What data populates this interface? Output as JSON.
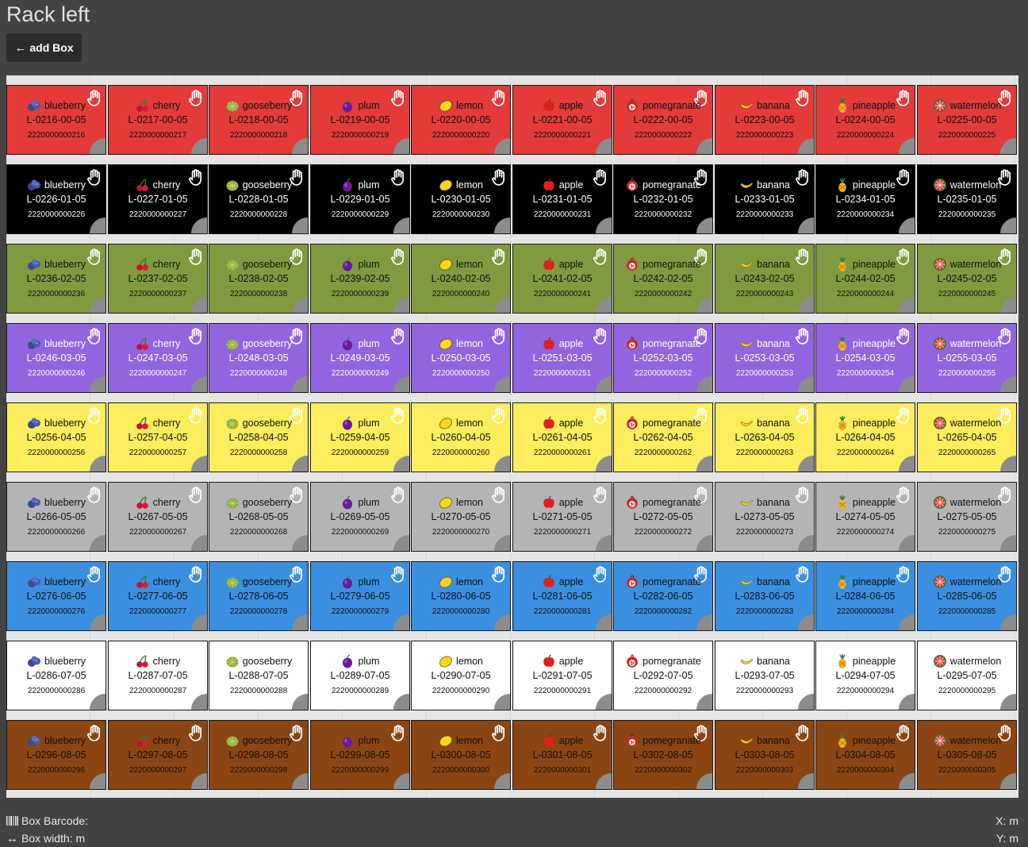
{
  "page": {
    "title": "Rack left"
  },
  "toolbar": {
    "add_box_label": "add Box",
    "add_box_icon": "arrow-left-icon"
  },
  "colors": {
    "red": "#e33a3a",
    "black": "#000000",
    "olive": "#7f9a3f",
    "purple": "#9165e0",
    "yellow": "#fbed5b",
    "gray": "#b4b4b4",
    "blue": "#3a8fe0",
    "white": "#ffffff",
    "brown": "#8b4513",
    "rack_bg": "#e5e5e5",
    "page_bg": "#434343"
  },
  "rows": [
    {
      "color": "#e33a3a",
      "text_color": "#111111",
      "hand_color": "#ffffff",
      "boxes": [
        {
          "fruit": "blueberry",
          "icon": "blueberry-icon",
          "label": "L-0216-00-05",
          "barcode": "2220000000216"
        },
        {
          "fruit": "cherry",
          "icon": "cherry-icon",
          "label": "L-0217-00-05",
          "barcode": "2220000000217"
        },
        {
          "fruit": "gooseberry",
          "icon": "gooseberry-icon",
          "label": "L-0218-00-05",
          "barcode": "2220000000218"
        },
        {
          "fruit": "plum",
          "icon": "plum-icon",
          "label": "L-0219-00-05",
          "barcode": "2220000000219"
        },
        {
          "fruit": "lemon",
          "icon": "lemon-icon",
          "label": "L-0220-00-05",
          "barcode": "2220000000220"
        },
        {
          "fruit": "apple",
          "icon": "apple-icon",
          "label": "L-0221-00-05",
          "barcode": "2220000000221"
        },
        {
          "fruit": "pomegranate",
          "icon": "pomegranate-icon",
          "label": "L-0222-00-05",
          "barcode": "2220000000222"
        },
        {
          "fruit": "banana",
          "icon": "banana-icon",
          "label": "L-0223-00-05",
          "barcode": "2220000000223"
        },
        {
          "fruit": "pineapple",
          "icon": "pineapple-icon",
          "label": "L-0224-00-05",
          "barcode": "2220000000224"
        },
        {
          "fruit": "watermelon",
          "icon": "watermelon-icon",
          "label": "L-0225-00-05",
          "barcode": "2220000000225"
        }
      ]
    },
    {
      "color": "#000000",
      "text_color": "#ffffff",
      "hand_color": "#ffffff",
      "boxes": [
        {
          "fruit": "blueberry",
          "icon": "blueberry-icon",
          "label": "L-0226-01-05",
          "barcode": "2220000000226"
        },
        {
          "fruit": "cherry",
          "icon": "cherry-icon",
          "label": "L-0227-01-05",
          "barcode": "2220000000227"
        },
        {
          "fruit": "gooseberry",
          "icon": "gooseberry-icon",
          "label": "L-0228-01-05",
          "barcode": "2220000000228"
        },
        {
          "fruit": "plum",
          "icon": "plum-icon",
          "label": "L-0229-01-05",
          "barcode": "2220000000229"
        },
        {
          "fruit": "lemon",
          "icon": "lemon-icon",
          "label": "L-0230-01-05",
          "barcode": "2220000000230"
        },
        {
          "fruit": "apple",
          "icon": "apple-icon",
          "label": "L-0231-01-05",
          "barcode": "2220000000231"
        },
        {
          "fruit": "pomegranate",
          "icon": "pomegranate-icon",
          "label": "L-0232-01-05",
          "barcode": "2220000000232"
        },
        {
          "fruit": "banana",
          "icon": "banana-icon",
          "label": "L-0233-01-05",
          "barcode": "2220000000233"
        },
        {
          "fruit": "pineapple",
          "icon": "pineapple-icon",
          "label": "L-0234-01-05",
          "barcode": "2220000000234"
        },
        {
          "fruit": "watermelon",
          "icon": "watermelon-icon",
          "label": "L-0235-01-05",
          "barcode": "2220000000235"
        }
      ]
    },
    {
      "color": "#7f9a3f",
      "text_color": "#111111",
      "hand_color": "#ffffff",
      "boxes": [
        {
          "fruit": "blueberry",
          "icon": "blueberry-icon",
          "label": "L-0236-02-05",
          "barcode": "2220000000236"
        },
        {
          "fruit": "cherry",
          "icon": "cherry-icon",
          "label": "L-0237-02-05",
          "barcode": "2220000000237"
        },
        {
          "fruit": "gooseberry",
          "icon": "gooseberry-icon",
          "label": "L-0238-02-05",
          "barcode": "2220000000238"
        },
        {
          "fruit": "plum",
          "icon": "plum-icon",
          "label": "L-0239-02-05",
          "barcode": "2220000000239"
        },
        {
          "fruit": "lemon",
          "icon": "lemon-icon",
          "label": "L-0240-02-05",
          "barcode": "2220000000240"
        },
        {
          "fruit": "apple",
          "icon": "apple-icon",
          "label": "L-0241-02-05",
          "barcode": "2220000000241"
        },
        {
          "fruit": "pomegranate",
          "icon": "pomegranate-icon",
          "label": "L-0242-02-05",
          "barcode": "2220000000242"
        },
        {
          "fruit": "banana",
          "icon": "banana-icon",
          "label": "L-0243-02-05",
          "barcode": "2220000000243"
        },
        {
          "fruit": "pineapple",
          "icon": "pineapple-icon",
          "label": "L-0244-02-05",
          "barcode": "2220000000244"
        },
        {
          "fruit": "watermelon",
          "icon": "watermelon-icon",
          "label": "L-0245-02-05",
          "barcode": "2220000000245"
        }
      ]
    },
    {
      "color": "#9165e0",
      "text_color": "#ffffff",
      "hand_color": "#ffffff",
      "boxes": [
        {
          "fruit": "blueberry",
          "icon": "blueberry-icon",
          "label": "L-0246-03-05",
          "barcode": "2220000000246"
        },
        {
          "fruit": "cherry",
          "icon": "cherry-icon",
          "label": "L-0247-03-05",
          "barcode": "2220000000247"
        },
        {
          "fruit": "gooseberry",
          "icon": "gooseberry-icon",
          "label": "L-0248-03-05",
          "barcode": "2220000000248"
        },
        {
          "fruit": "plum",
          "icon": "plum-icon",
          "label": "L-0249-03-05",
          "barcode": "2220000000249"
        },
        {
          "fruit": "lemon",
          "icon": "lemon-icon",
          "label": "L-0250-03-05",
          "barcode": "2220000000250"
        },
        {
          "fruit": "apple",
          "icon": "apple-icon",
          "label": "L-0251-03-05",
          "barcode": "2220000000251"
        },
        {
          "fruit": "pomegranate",
          "icon": "pomegranate-icon",
          "label": "L-0252-03-05",
          "barcode": "2220000000252"
        },
        {
          "fruit": "banana",
          "icon": "banana-icon",
          "label": "L-0253-03-05",
          "barcode": "2220000000253"
        },
        {
          "fruit": "pineapple",
          "icon": "pineapple-icon",
          "label": "L-0254-03-05",
          "barcode": "2220000000254"
        },
        {
          "fruit": "watermelon",
          "icon": "watermelon-icon",
          "label": "L-0255-03-05",
          "barcode": "2220000000255"
        }
      ]
    },
    {
      "color": "#fbed5b",
      "text_color": "#111111",
      "hand_color": "#ffffff",
      "boxes": [
        {
          "fruit": "blueberry",
          "icon": "blueberry-icon",
          "label": "L-0256-04-05",
          "barcode": "2220000000256"
        },
        {
          "fruit": "cherry",
          "icon": "cherry-icon",
          "label": "L-0257-04-05",
          "barcode": "2220000000257"
        },
        {
          "fruit": "gooseberry",
          "icon": "gooseberry-icon",
          "label": "L-0258-04-05",
          "barcode": "2220000000258"
        },
        {
          "fruit": "plum",
          "icon": "plum-icon",
          "label": "L-0259-04-05",
          "barcode": "2220000000259"
        },
        {
          "fruit": "lemon",
          "icon": "lemon-icon",
          "label": "L-0260-04-05",
          "barcode": "2220000000260"
        },
        {
          "fruit": "apple",
          "icon": "apple-icon",
          "label": "L-0261-04-05",
          "barcode": "2220000000261"
        },
        {
          "fruit": "pomegranate",
          "icon": "pomegranate-icon",
          "label": "L-0262-04-05",
          "barcode": "2220000000262"
        },
        {
          "fruit": "banana",
          "icon": "banana-icon",
          "label": "L-0263-04-05",
          "barcode": "2220000000263"
        },
        {
          "fruit": "pineapple",
          "icon": "pineapple-icon",
          "label": "L-0264-04-05",
          "barcode": "2220000000264"
        },
        {
          "fruit": "watermelon",
          "icon": "watermelon-icon",
          "label": "L-0265-04-05",
          "barcode": "2220000000265"
        }
      ]
    },
    {
      "color": "#b4b4b4",
      "text_color": "#111111",
      "hand_color": "#ffffff",
      "boxes": [
        {
          "fruit": "blueberry",
          "icon": "blueberry-icon",
          "label": "L-0266-05-05",
          "barcode": "2220000000266"
        },
        {
          "fruit": "cherry",
          "icon": "cherry-icon",
          "label": "L-0267-05-05",
          "barcode": "2220000000267"
        },
        {
          "fruit": "gooseberry",
          "icon": "gooseberry-icon",
          "label": "L-0268-05-05",
          "barcode": "2220000000268"
        },
        {
          "fruit": "plum",
          "icon": "plum-icon",
          "label": "L-0269-05-05",
          "barcode": "2220000000269"
        },
        {
          "fruit": "lemon",
          "icon": "lemon-icon",
          "label": "L-0270-05-05",
          "barcode": "2220000000270"
        },
        {
          "fruit": "apple",
          "icon": "apple-icon",
          "label": "L-0271-05-05",
          "barcode": "2220000000271"
        },
        {
          "fruit": "pomegranate",
          "icon": "pomegranate-icon",
          "label": "L-0272-05-05",
          "barcode": "2220000000272"
        },
        {
          "fruit": "banana",
          "icon": "banana-icon",
          "label": "L-0273-05-05",
          "barcode": "2220000000273"
        },
        {
          "fruit": "pineapple",
          "icon": "pineapple-icon",
          "label": "L-0274-05-05",
          "barcode": "2220000000274"
        },
        {
          "fruit": "watermelon",
          "icon": "watermelon-icon",
          "label": "L-0275-05-05",
          "barcode": "2220000000275"
        }
      ]
    },
    {
      "color": "#3a8fe0",
      "text_color": "#111111",
      "hand_color": "#ffffff",
      "boxes": [
        {
          "fruit": "blueberry",
          "icon": "blueberry-icon",
          "label": "L-0276-06-05",
          "barcode": "2220000000276"
        },
        {
          "fruit": "cherry",
          "icon": "cherry-icon",
          "label": "L-0277-06-05",
          "barcode": "2220000000277"
        },
        {
          "fruit": "gooseberry",
          "icon": "gooseberry-icon",
          "label": "L-0278-06-05",
          "barcode": "2220000000278"
        },
        {
          "fruit": "plum",
          "icon": "plum-icon",
          "label": "L-0279-06-05",
          "barcode": "2220000000279"
        },
        {
          "fruit": "lemon",
          "icon": "lemon-icon",
          "label": "L-0280-06-05",
          "barcode": "2220000000280"
        },
        {
          "fruit": "apple",
          "icon": "apple-icon",
          "label": "L-0281-06-05",
          "barcode": "2220000000281"
        },
        {
          "fruit": "pomegranate",
          "icon": "pomegranate-icon",
          "label": "L-0282-06-05",
          "barcode": "2220000000282"
        },
        {
          "fruit": "banana",
          "icon": "banana-icon",
          "label": "L-0283-06-05",
          "barcode": "2220000000283"
        },
        {
          "fruit": "pineapple",
          "icon": "pineapple-icon",
          "label": "L-0284-06-05",
          "barcode": "2220000000284"
        },
        {
          "fruit": "watermelon",
          "icon": "watermelon-icon",
          "label": "L-0285-06-05",
          "barcode": "2220000000285"
        }
      ]
    },
    {
      "color": "#ffffff",
      "text_color": "#111111",
      "hand_color": "#ffffff",
      "boxes": [
        {
          "fruit": "blueberry",
          "icon": "blueberry-icon",
          "label": "L-0286-07-05",
          "barcode": "2220000000286"
        },
        {
          "fruit": "cherry",
          "icon": "cherry-icon",
          "label": "L-0287-07-05",
          "barcode": "2220000000287"
        },
        {
          "fruit": "gooseberry",
          "icon": "gooseberry-icon",
          "label": "L-0288-07-05",
          "barcode": "2220000000288"
        },
        {
          "fruit": "plum",
          "icon": "plum-icon",
          "label": "L-0289-07-05",
          "barcode": "2220000000289"
        },
        {
          "fruit": "lemon",
          "icon": "lemon-icon",
          "label": "L-0290-07-05",
          "barcode": "2220000000290"
        },
        {
          "fruit": "apple",
          "icon": "apple-icon",
          "label": "L-0291-07-05",
          "barcode": "2220000000291"
        },
        {
          "fruit": "pomegranate",
          "icon": "pomegranate-icon",
          "label": "L-0292-07-05",
          "barcode": "2220000000292"
        },
        {
          "fruit": "banana",
          "icon": "banana-icon",
          "label": "L-0293-07-05",
          "barcode": "2220000000293"
        },
        {
          "fruit": "pineapple",
          "icon": "pineapple-icon",
          "label": "L-0294-07-05",
          "barcode": "2220000000294"
        },
        {
          "fruit": "watermelon",
          "icon": "watermelon-icon",
          "label": "L-0295-07-05",
          "barcode": "2220000000295"
        }
      ]
    },
    {
      "color": "#8b4513",
      "text_color": "#111111",
      "hand_color": "#ffffff",
      "boxes": [
        {
          "fruit": "blueberry",
          "icon": "blueberry-icon",
          "label": "L-0296-08-05",
          "barcode": "2220000000296"
        },
        {
          "fruit": "cherry",
          "icon": "cherry-icon",
          "label": "L-0297-08-05",
          "barcode": "2220000000297"
        },
        {
          "fruit": "gooseberry",
          "icon": "gooseberry-icon",
          "label": "L-0298-08-05",
          "barcode": "2220000000298"
        },
        {
          "fruit": "plum",
          "icon": "plum-icon",
          "label": "L-0299-08-05",
          "barcode": "2220000000299"
        },
        {
          "fruit": "lemon",
          "icon": "lemon-icon",
          "label": "L-0300-08-05",
          "barcode": "2220000000300"
        },
        {
          "fruit": "apple",
          "icon": "apple-icon",
          "label": "L-0301-08-05",
          "barcode": "2220000000301"
        },
        {
          "fruit": "pomegranate",
          "icon": "pomegranate-icon",
          "label": "L-0302-08-05",
          "barcode": "2220000000302"
        },
        {
          "fruit": "banana",
          "icon": "banana-icon",
          "label": "L-0303-08-05",
          "barcode": "2220000000303"
        },
        {
          "fruit": "pineapple",
          "icon": "pineapple-icon",
          "label": "L-0304-08-05",
          "barcode": "2220000000304"
        },
        {
          "fruit": "watermelon",
          "icon": "watermelon-icon",
          "label": "L-0305-08-05",
          "barcode": "2220000000305"
        }
      ]
    }
  ],
  "footer": {
    "box_barcode_label": "Box Barcode:",
    "box_barcode_icon": "barcode-icon",
    "box_width_label": "Box width: m",
    "box_width_icon": "arrows-horizontal-icon",
    "x_label": "X: m",
    "y_label": "Y: m"
  }
}
